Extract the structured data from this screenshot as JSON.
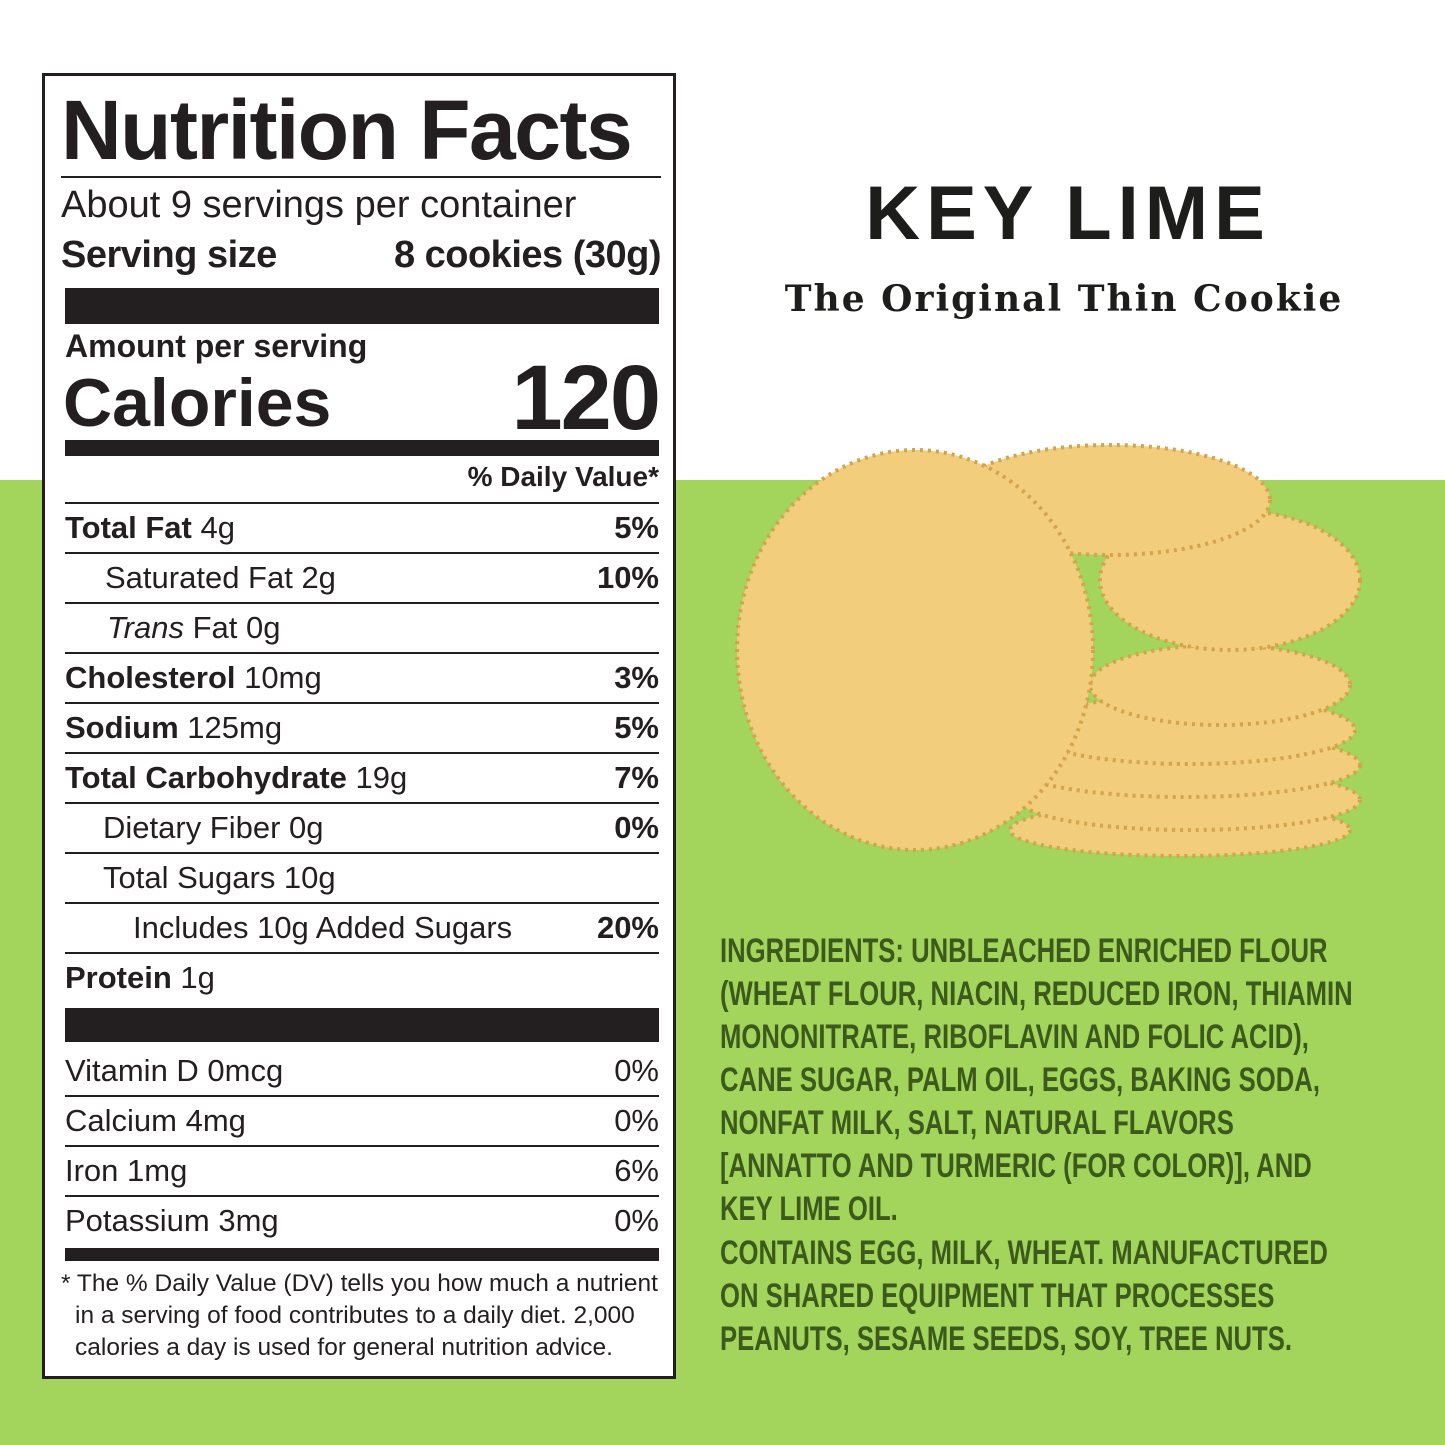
{
  "label": {
    "title": "Nutrition Facts",
    "servings": "About 9 servings per container",
    "serving_size": {
      "label": "Serving size",
      "value": "8 cookies (30g)"
    },
    "amount_per_serving": "Amount per serving",
    "calories": {
      "label": "Calories",
      "value": "120"
    },
    "dv_header": "% Daily Value*",
    "nutrients": [
      {
        "name": "Total Fat",
        "text": "4g",
        "dv": "5%"
      },
      {
        "text": "Saturated Fat 2g",
        "dv": "10%"
      },
      {
        "name_italic": "Trans",
        "text": "Fat 0g"
      },
      {
        "name": "Cholesterol",
        "text": "10mg",
        "dv": "3%"
      },
      {
        "name": "Sodium",
        "text": "125mg",
        "dv": "5%"
      },
      {
        "name": "Total Carbohydrate",
        "text": "19g",
        "dv": "7%"
      },
      {
        "text": "Dietary Fiber 0g",
        "dv": "0%"
      },
      {
        "text": "Total Sugars 10g"
      },
      {
        "text": "Includes 10g Added Sugars",
        "dv": "20%"
      },
      {
        "name": "Protein",
        "text": "1g"
      }
    ],
    "vitamins": [
      {
        "text": "Vitamin D 0mcg",
        "dv": "0%"
      },
      {
        "text": "Calcium 4mg",
        "dv": "0%"
      },
      {
        "text": "Iron 1mg",
        "dv": "6%"
      },
      {
        "text": "Potassium 3mg",
        "dv": "0%"
      }
    ],
    "footnote": "* The % Daily Value (DV) tells you how much a nutrient in a serving of food contributes to a daily diet. 2,000 calories a day is used for general nutrition advice."
  },
  "product": {
    "name": "KEY LIME",
    "tagline": "The Original Thin Cookie"
  },
  "ingredients": "INGREDIENTS: UNBLEACHED ENRICHED FLOUR (WHEAT FLOUR, NIACIN, REDUCED IRON, THIAMIN MONONITRATE, RIBOFLAVIN AND FOLIC ACID), CANE SUGAR, PALM OIL, EGGS, BAKING SODA, NONFAT MILK, SALT, NATURAL FLAVORS [ANNATTO AND TURMERIC (FOR COLOR)], AND KEY LIME OIL.",
  "allergens": "CONTAINS EGG, MILK, WHEAT. MANUFACTURED ON SHARED EQUIPMENT THAT PROCESSES PEANUTS, SESAME SEEDS, SOY, TREE NUTS."
}
